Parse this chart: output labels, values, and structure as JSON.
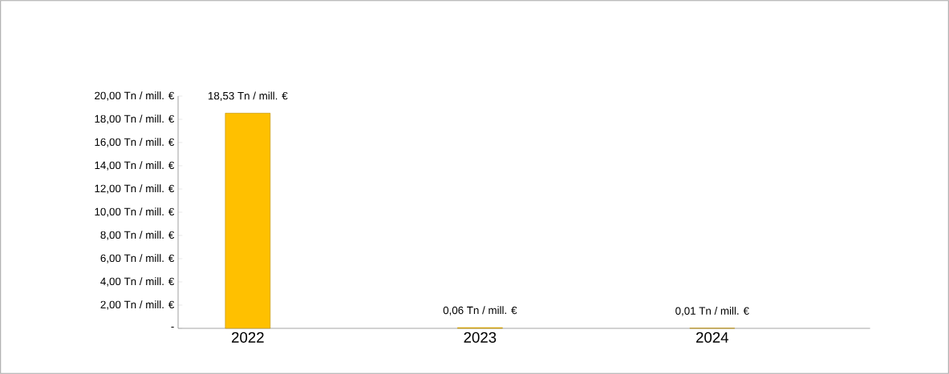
{
  "chart_data": {
    "type": "bar",
    "categories": [
      "2022",
      "2023",
      "2024"
    ],
    "values": [
      18.53,
      0.06,
      0.01
    ],
    "color": "#ffc000",
    "value_labels": [
      "18,53 Tn / mill. €",
      "0,06 Tn / mill. €",
      "0,01 Tn / mill. €"
    ],
    "ylim": [
      0,
      20
    ],
    "yticks": [
      {
        "value": 0,
        "label": "-"
      },
      {
        "value": 2,
        "label": "2,00 Tn / mill. €"
      },
      {
        "value": 4,
        "label": "4,00 Tn / mill. €"
      },
      {
        "value": 6,
        "label": "6,00 Tn / mill. €"
      },
      {
        "value": 8,
        "label": "8,00 Tn / mill. €"
      },
      {
        "value": 10,
        "label": "10,00 Tn / mill. €"
      },
      {
        "value": 12,
        "label": "12,00 Tn / mill. €"
      },
      {
        "value": 14,
        "label": "14,00 Tn / mill. €"
      },
      {
        "value": 16,
        "label": "16,00 Tn / mill. €"
      },
      {
        "value": 18,
        "label": "18,00 Tn / mill. €"
      },
      {
        "value": 20,
        "label": "20,00 Tn / mill. €"
      }
    ],
    "grid": false
  }
}
